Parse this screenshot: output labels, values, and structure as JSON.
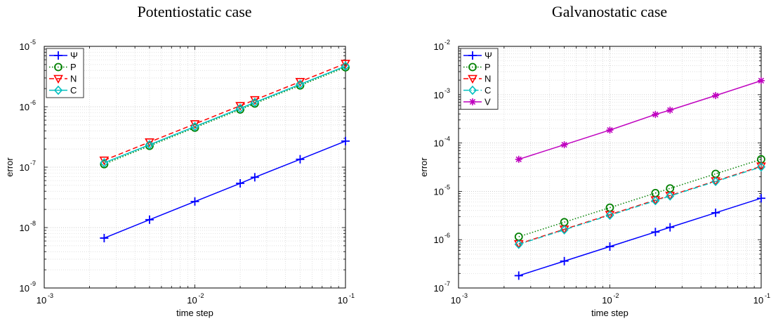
{
  "chart_data": [
    {
      "type": "line",
      "title": "Potentiostatic case",
      "xlabel": "time step",
      "ylabel": "error",
      "x_scale": "log",
      "y_scale": "log",
      "xlim": [
        0.001,
        0.1
      ],
      "ylim": [
        1e-09,
        1e-05
      ],
      "grid": true,
      "legend_position": "top-left",
      "x_ticks": [
        {
          "base": "10",
          "exp": "-3"
        },
        {
          "base": "10",
          "exp": "-2"
        },
        {
          "base": "10",
          "exp": "-1"
        }
      ],
      "y_ticks": [
        {
          "base": "10",
          "exp": "-9"
        },
        {
          "base": "10",
          "exp": "-8"
        },
        {
          "base": "10",
          "exp": "-7"
        },
        {
          "base": "10",
          "exp": "-6"
        },
        {
          "base": "10",
          "exp": "-5"
        }
      ],
      "x": [
        0.0025,
        0.005,
        0.01,
        0.02,
        0.025,
        0.05,
        0.1
      ],
      "series": [
        {
          "name": "Ψ",
          "color": "#0000ff",
          "marker": "plus",
          "dash": "solid",
          "values": [
            6.7e-09,
            1.35e-08,
            2.7e-08,
            5.4e-08,
            6.8e-08,
            1.35e-07,
            2.7e-07
          ]
        },
        {
          "name": "P",
          "color": "#008000",
          "marker": "circle",
          "dash": "dotted",
          "values": [
            1.12e-07,
            2.25e-07,
            4.5e-07,
            9e-07,
            1.13e-06,
            2.25e-06,
            4.5e-06
          ]
        },
        {
          "name": "N",
          "color": "#ff0000",
          "marker": "triangle-down",
          "dash": "dashed",
          "values": [
            1.3e-07,
            2.6e-07,
            5.2e-07,
            1.04e-06,
            1.3e-06,
            2.6e-06,
            5.2e-06
          ]
        },
        {
          "name": "C",
          "color": "#00bfbf",
          "marker": "diamond",
          "dash": "solid",
          "values": [
            1.18e-07,
            2.35e-07,
            4.7e-07,
            9.4e-07,
            1.18e-06,
            2.35e-06,
            4.7e-06
          ]
        }
      ]
    },
    {
      "type": "line",
      "title": "Galvanostatic case",
      "xlabel": "time step",
      "ylabel": "error",
      "x_scale": "log",
      "y_scale": "log",
      "xlim": [
        0.001,
        0.1
      ],
      "ylim": [
        1e-07,
        0.01
      ],
      "grid": true,
      "legend_position": "top-left",
      "x_ticks": [
        {
          "base": "10",
          "exp": "-3"
        },
        {
          "base": "10",
          "exp": "-2"
        },
        {
          "base": "10",
          "exp": "-1"
        }
      ],
      "y_ticks": [
        {
          "base": "10",
          "exp": "-7"
        },
        {
          "base": "10",
          "exp": "-6"
        },
        {
          "base": "10",
          "exp": "-5"
        },
        {
          "base": "10",
          "exp": "-4"
        },
        {
          "base": "10",
          "exp": "-3"
        },
        {
          "base": "10",
          "exp": "-2"
        }
      ],
      "x": [
        0.0025,
        0.005,
        0.01,
        0.02,
        0.025,
        0.05,
        0.1
      ],
      "series": [
        {
          "name": "Ψ",
          "color": "#0000ff",
          "marker": "plus",
          "dash": "solid",
          "values": [
            1.8e-07,
            3.6e-07,
            7.2e-07,
            1.44e-06,
            1.8e-06,
            3.6e-06,
            7.2e-06
          ]
        },
        {
          "name": "P",
          "color": "#008000",
          "marker": "circle",
          "dash": "dotted",
          "values": [
            1.15e-06,
            2.3e-06,
            4.6e-06,
            9.2e-06,
            1.15e-05,
            2.3e-05,
            4.6e-05
          ]
        },
        {
          "name": "N",
          "color": "#ff0000",
          "marker": "triangle-down",
          "dash": "dashed",
          "values": [
            8.2e-07,
            1.64e-06,
            3.3e-06,
            6.6e-06,
            8.2e-06,
            1.64e-05,
            3.3e-05
          ]
        },
        {
          "name": "C",
          "color": "#00bfbf",
          "marker": "diamond",
          "dash": "dashdot",
          "values": [
            8e-07,
            1.6e-06,
            3.2e-06,
            6.4e-06,
            8e-06,
            1.6e-05,
            3.2e-05
          ]
        },
        {
          "name": "V",
          "color": "#bf00bf",
          "marker": "asterisk",
          "dash": "solid",
          "values": [
            4.6e-05,
            9.2e-05,
            0.000185,
            0.00039,
            0.00048,
            0.00096,
            0.00195
          ]
        }
      ]
    }
  ]
}
